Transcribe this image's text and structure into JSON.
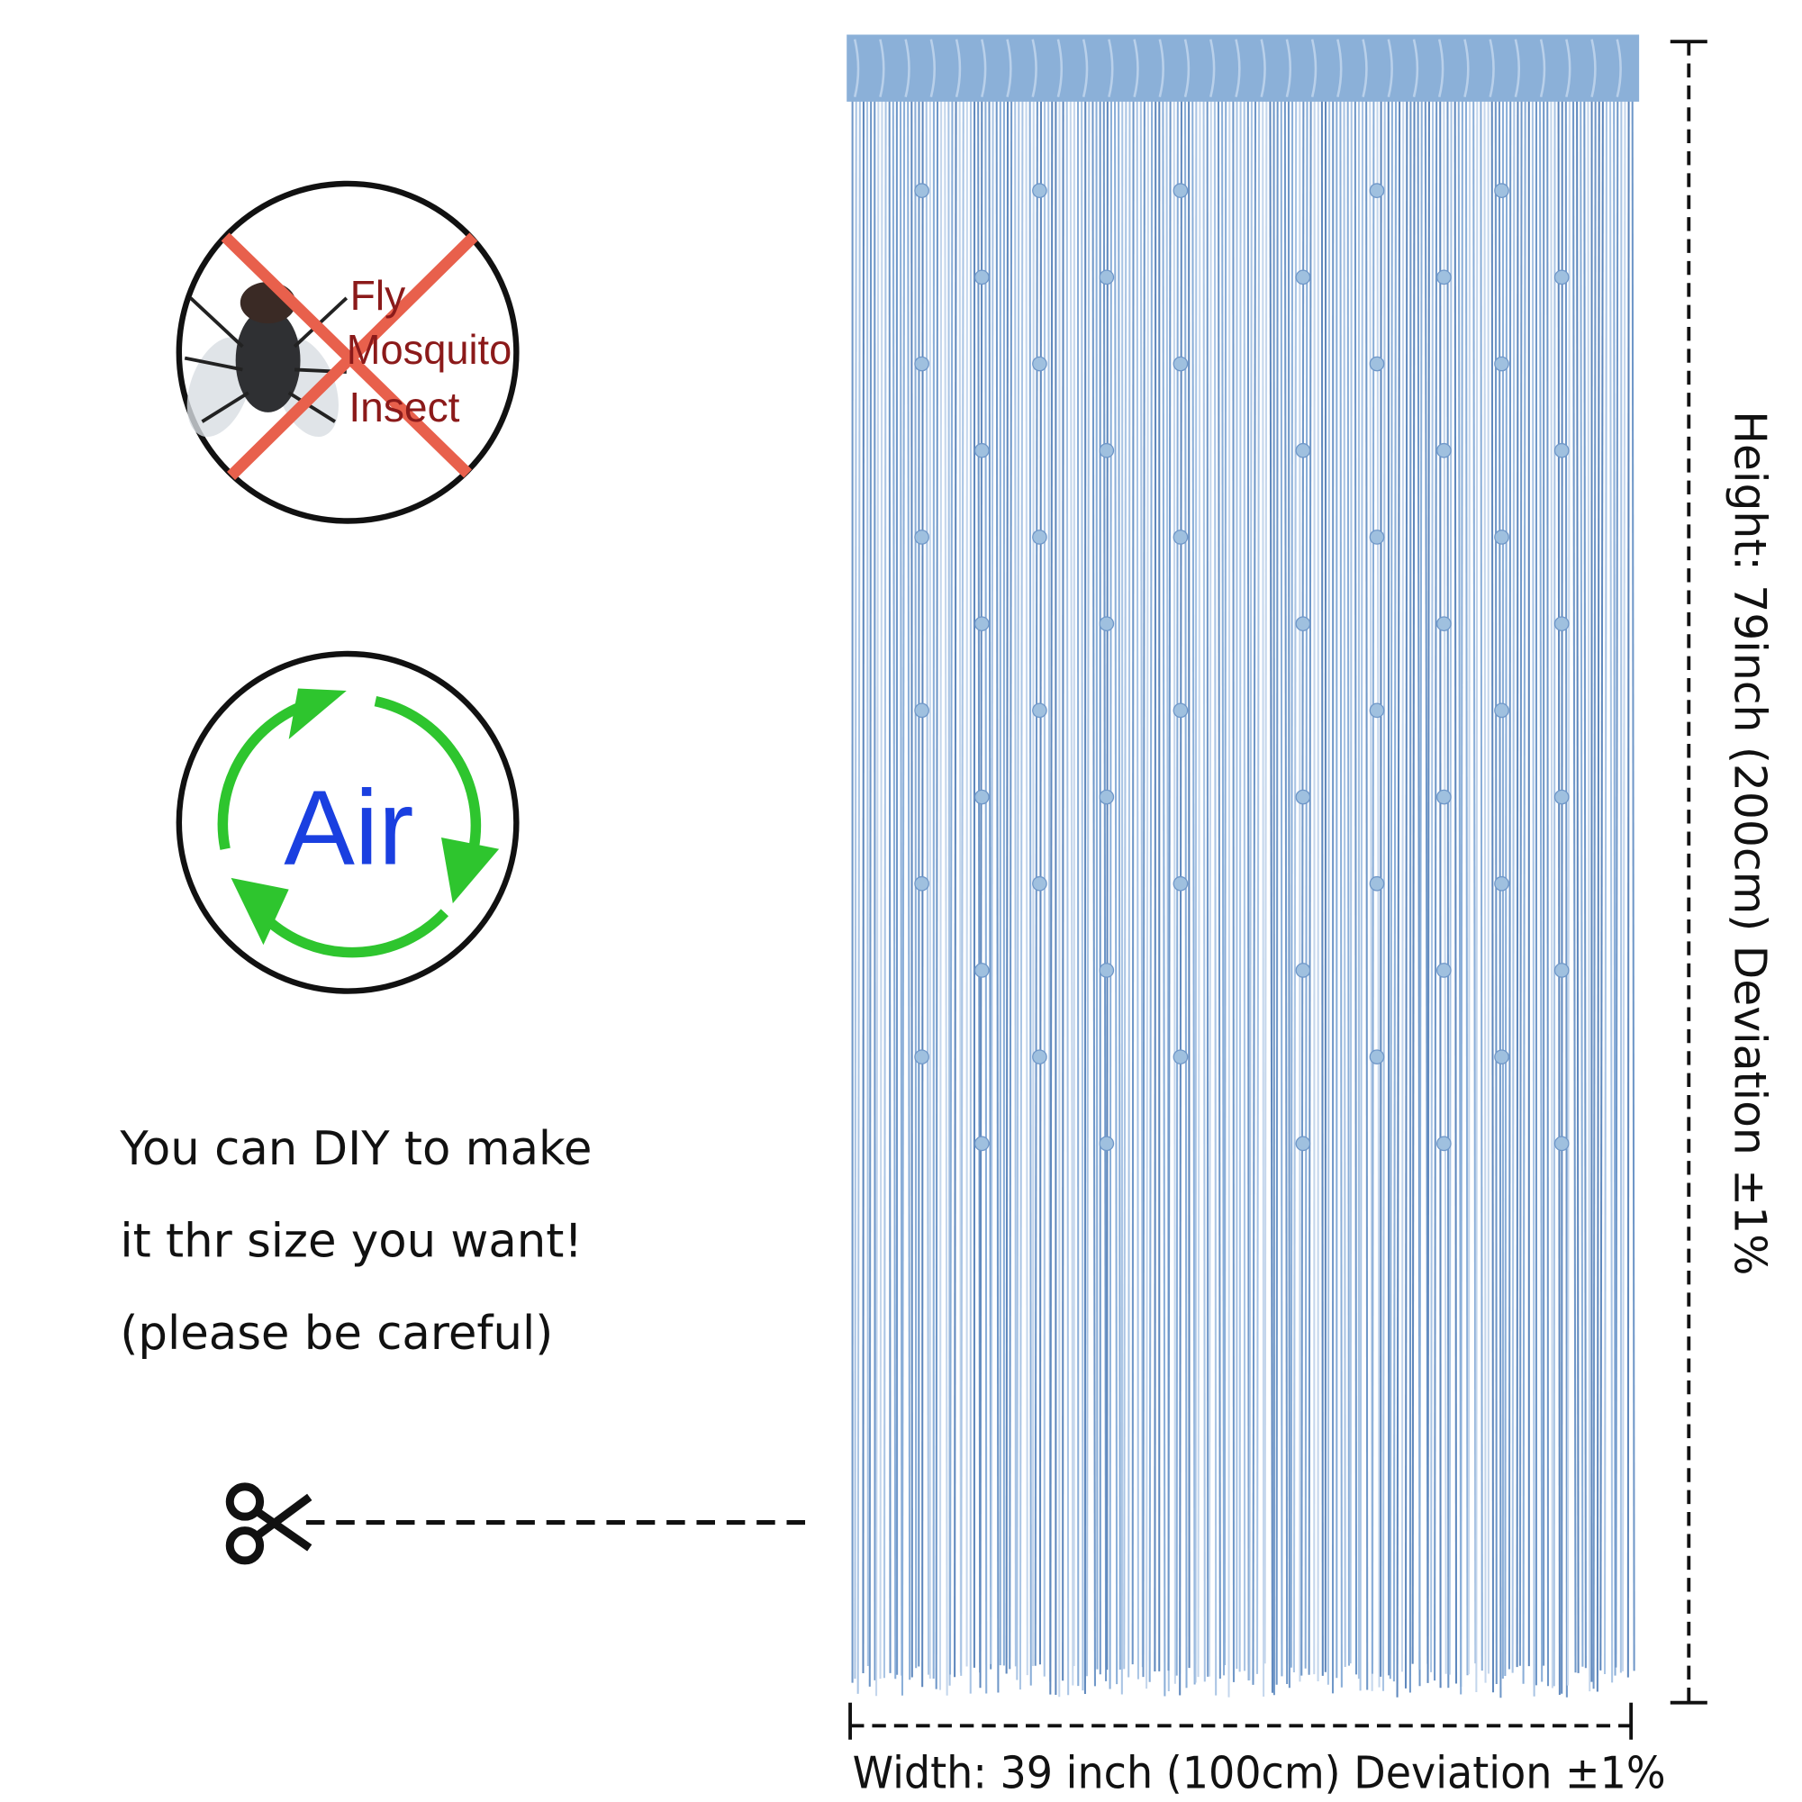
{
  "pest_badge": {
    "labels": [
      "Fly",
      "Mosquito",
      "Insect"
    ]
  },
  "air_badge": {
    "label": "Air"
  },
  "diy_note": {
    "lines": [
      "You can DIY to make",
      "it thr size you want!",
      "(please be careful)"
    ]
  },
  "dimensions": {
    "height": "Height: 79inch (200cm) Deviation ±1%",
    "width": "Width: 39 inch (100cm) Deviation ±1%"
  }
}
